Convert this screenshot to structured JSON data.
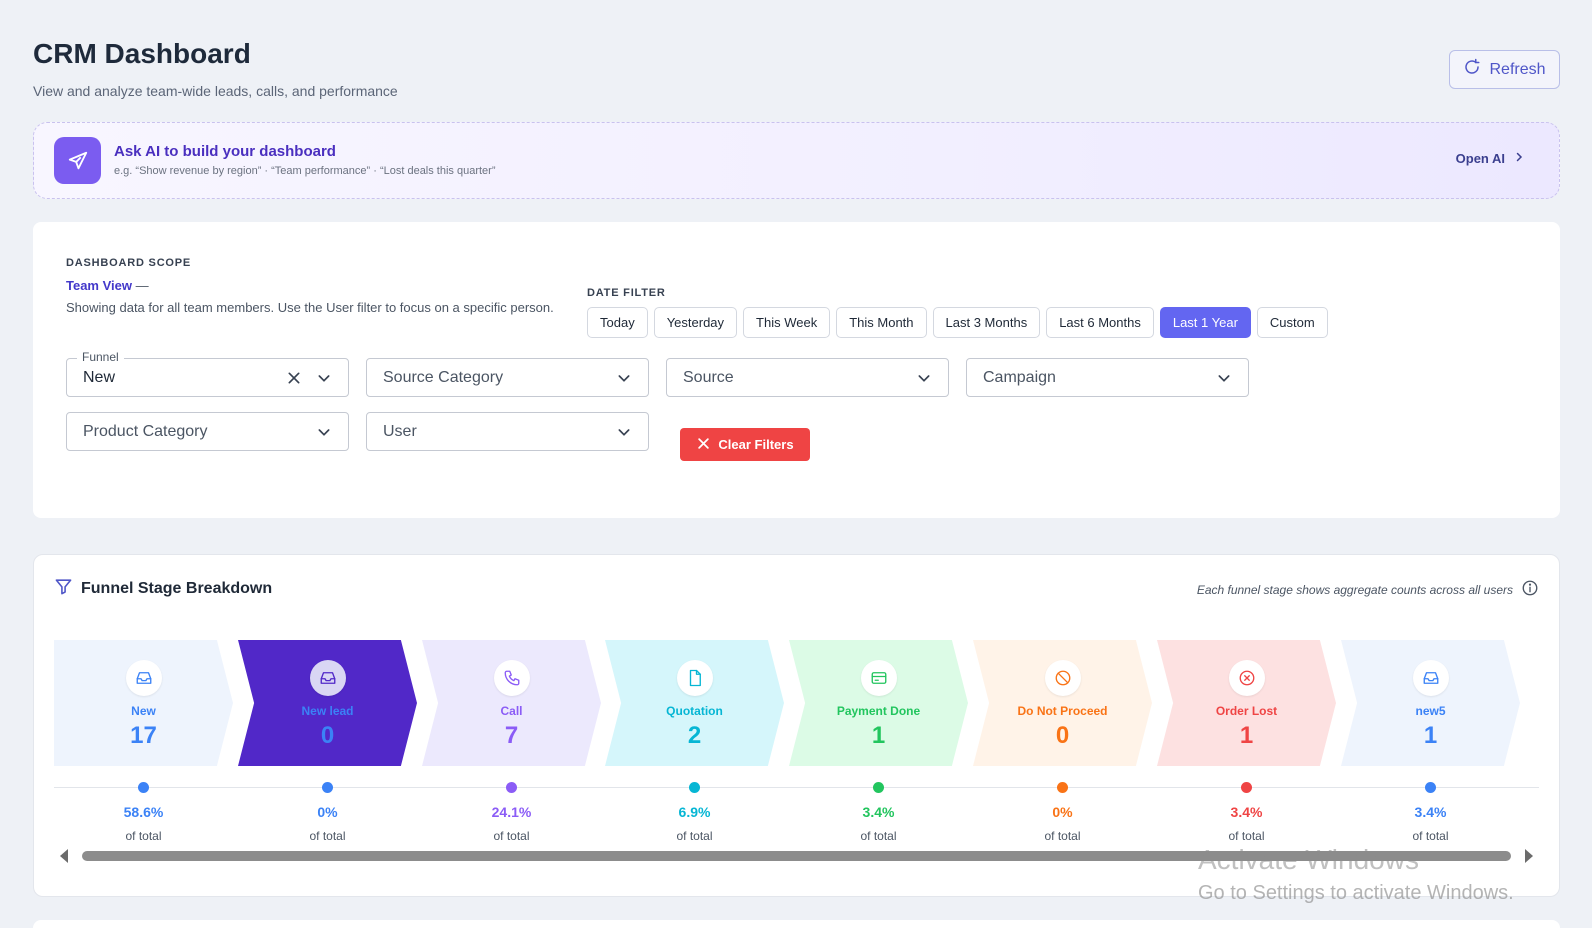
{
  "header": {
    "title": "CRM Dashboard",
    "subtitle": "View and analyze team-wide leads, calls, and performance",
    "refresh_label": "Refresh"
  },
  "ai_banner": {
    "title": "Ask AI to build your dashboard",
    "hint": "e.g. “Show revenue by region” · “Team performance” · “Lost deals this quarter”",
    "open_label": "Open AI"
  },
  "scope": {
    "label": "DASHBOARD SCOPE",
    "view_name": "Team View",
    "view_dash": " —",
    "description": "Showing data for all team members. Use the User filter to focus on a specific person."
  },
  "date_filter": {
    "label": "DATE FILTER",
    "options": [
      "Today",
      "Yesterday",
      "This Week",
      "This Month",
      "Last 3 Months",
      "Last 6 Months",
      "Last 1 Year",
      "Custom"
    ],
    "selected": "Last 1 Year"
  },
  "filters": {
    "funnel_label": "Funnel",
    "funnel_value": "New",
    "source_category": "Source Category",
    "source": "Source",
    "campaign": "Campaign",
    "product_category": "Product Category",
    "user": "User",
    "clear_label": "Clear Filters"
  },
  "funnel": {
    "title": "Funnel Stage Breakdown",
    "note": "Each funnel stage shows aggregate counts across all users",
    "of_total_label": "of total",
    "stages": [
      {
        "name": "New",
        "count": "17",
        "pct": "58.6%",
        "icon": "inbox-icon",
        "bg": "#eef4fd",
        "color": "#3b82f6"
      },
      {
        "name": "New lead",
        "count": "0",
        "pct": "0%",
        "icon": "inbox-icon",
        "bg": "#5128c8",
        "color": "#3b82f6"
      },
      {
        "name": "Call",
        "count": "7",
        "pct": "24.1%",
        "icon": "phone-icon",
        "bg": "#ece9fd",
        "color": "#8b5cf6"
      },
      {
        "name": "Quotation",
        "count": "2",
        "pct": "6.9%",
        "icon": "document-icon",
        "bg": "#d5f6fb",
        "color": "#06b6d4"
      },
      {
        "name": "Payment Done",
        "count": "1",
        "pct": "3.4%",
        "icon": "card-icon",
        "bg": "#dcfbe6",
        "color": "#22c55e"
      },
      {
        "name": "Do Not Proceed",
        "count": "0",
        "pct": "0%",
        "icon": "ban-icon",
        "bg": "#fff3e8",
        "color": "#f97316"
      },
      {
        "name": "Order Lost",
        "count": "1",
        "pct": "3.4%",
        "icon": "x-circle-icon",
        "bg": "#fde1e1",
        "color": "#ef4444"
      },
      {
        "name": "new5",
        "count": "1",
        "pct": "3.4%",
        "icon": "inbox-icon",
        "bg": "#eef4fd",
        "color": "#3b82f6"
      }
    ]
  },
  "watermark": {
    "line1": "Activate Windows",
    "line2": "Go to Settings to activate Windows."
  }
}
